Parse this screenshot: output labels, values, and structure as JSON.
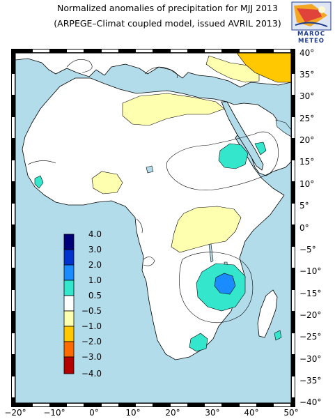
{
  "title": {
    "line1": "Normalized anomalies of precipitation for MJJ 2013",
    "line2": "(ARPEGE–Climat coupled model, issued AVRIL 2013)"
  },
  "logo": {
    "line1": "MAROC",
    "line2": "METEO",
    "icon": "maroc-meteo-logo"
  },
  "map": {
    "lon_ticks": [
      "−20°",
      "−10°",
      "0°",
      "10°",
      "20°",
      "30°",
      "40°",
      "50°"
    ],
    "lat_ticks": [
      "40°",
      "35°",
      "30°",
      "25°",
      "20°",
      "15°",
      "10°",
      "5°",
      "0°",
      "−5°",
      "−10°",
      "−15°",
      "−20°",
      "−25°",
      "−30°",
      "−35°",
      "−40°"
    ],
    "ocean_color": "#b3dceb",
    "land_color": "#ffffff"
  },
  "legend": {
    "labels": [
      "4.0",
      "3.0",
      "2.0",
      "1.0",
      "0.5",
      "−0.5",
      "−1.0",
      "−2.0",
      "−3.0",
      "−4.0"
    ],
    "colors": [
      "#00007a",
      "#0033cc",
      "#1a8cff",
      "#33e6cc",
      "#ffffff",
      "#ffffb0",
      "#ffc800",
      "#ff6a00",
      "#b40000"
    ]
  }
}
